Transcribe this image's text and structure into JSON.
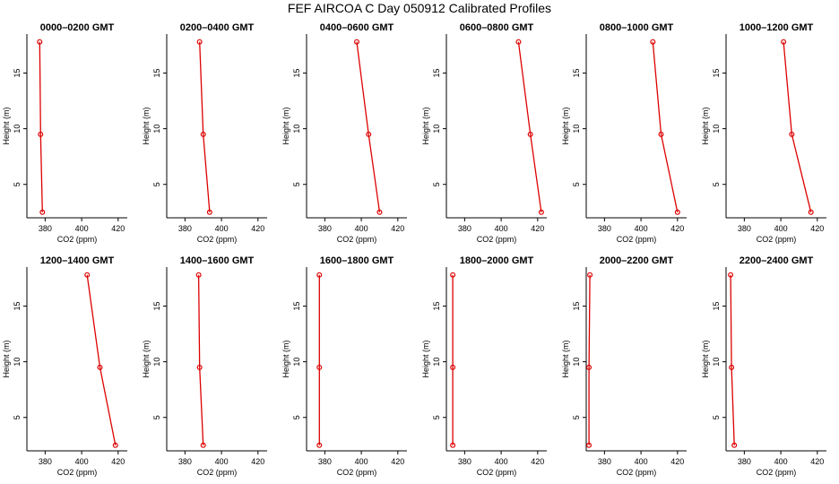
{
  "title": "FEF AIRCOA C  Day 050912  Calibrated Profiles",
  "xlabel": "CO2 (ppm)",
  "ylabel": "Height (m)",
  "colors": {
    "profile": "#dd0000",
    "axis": "#000000"
  },
  "chart_data": {
    "type": "line",
    "xlim": [
      370,
      425
    ],
    "ylim": [
      2,
      18.5
    ],
    "x_ticks": [
      380,
      400,
      420
    ],
    "y_ticks": [
      5,
      10,
      15
    ],
    "heights": [
      2.5,
      9.5,
      17.8
    ],
    "panels": [
      {
        "title": "0000–0200 GMT",
        "values": [
          378.5,
          377.5,
          377.0
        ]
      },
      {
        "title": "0200–0400 GMT",
        "values": [
          393.5,
          390.0,
          388.0
        ]
      },
      {
        "title": "0400–0600 GMT",
        "values": [
          410.0,
          404.0,
          397.5
        ]
      },
      {
        "title": "0600–0800 GMT",
        "values": [
          422.0,
          416.0,
          409.5
        ]
      },
      {
        "title": "0800–1000 GMT",
        "values": [
          420.0,
          411.0,
          406.5
        ]
      },
      {
        "title": "1000–1200 GMT",
        "values": [
          416.5,
          406.0,
          401.5
        ]
      },
      {
        "title": "1200–1400 GMT",
        "values": [
          418.5,
          410.0,
          403.0
        ]
      },
      {
        "title": "1400–1600 GMT",
        "values": [
          390.0,
          388.0,
          387.5
        ]
      },
      {
        "title": "1600–1800 GMT",
        "values": [
          377.0,
          377.0,
          377.0
        ]
      },
      {
        "title": "1800–2000 GMT",
        "values": [
          373.5,
          373.5,
          373.5
        ]
      },
      {
        "title": "2000–2200 GMT",
        "values": [
          371.5,
          371.5,
          372.0
        ]
      },
      {
        "title": "2200–2400 GMT",
        "values": [
          374.5,
          373.0,
          372.5
        ]
      }
    ]
  }
}
